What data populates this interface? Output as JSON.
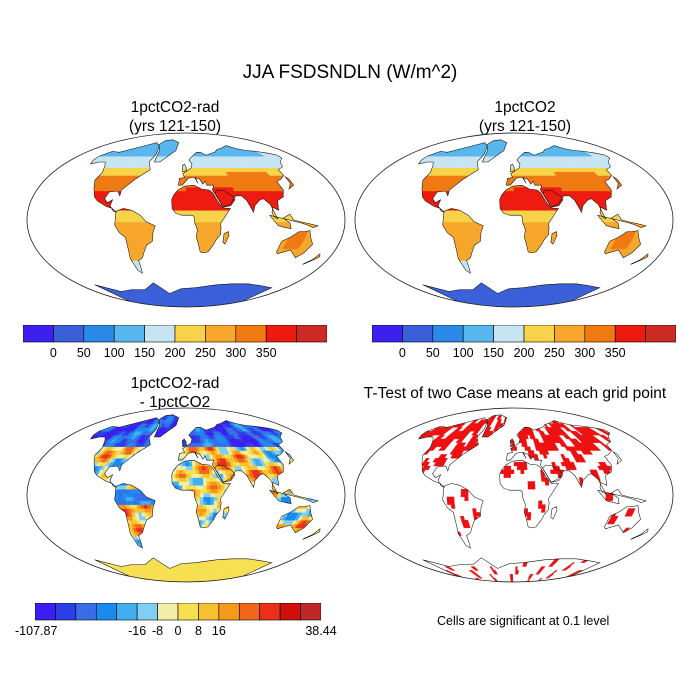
{
  "title": "JJA FSDSNDLN (W/m^2)",
  "panels": [
    {
      "id": "p1",
      "title_lines": [
        "1pctCO2-rad",
        "(yrs 121-150)"
      ],
      "kind": "absolute"
    },
    {
      "id": "p2",
      "title_lines": [
        "1pctCO2",
        "(yrs 121-150)"
      ],
      "kind": "absolute"
    },
    {
      "id": "p3",
      "title_lines": [
        "1pctCO2-rad",
        "- 1pctCO2"
      ],
      "kind": "difference"
    },
    {
      "id": "p4",
      "title_lines": [
        "T-Test of two Case means at each grid point"
      ],
      "kind": "ttest"
    }
  ],
  "colorbar_abs": {
    "colors": [
      "#3d1ff0",
      "#3a5fd9",
      "#2b8ae8",
      "#58b6ee",
      "#c6e4f2",
      "#f6d348",
      "#f6a72c",
      "#f07a12",
      "#ee1a10",
      "#cc2a22"
    ],
    "labels": [
      "0",
      "50",
      "100",
      "150",
      "200",
      "250",
      "300",
      "350"
    ]
  },
  "colorbar_diff": {
    "colors": [
      "#3a1ef2",
      "#2a3fe8",
      "#3a6ce8",
      "#1a8af0",
      "#40aef0",
      "#7fcff2",
      "#f2eeaa",
      "#f6e050",
      "#f6c030",
      "#f49a1a",
      "#f0661a",
      "#e8301a",
      "#d00e0e",
      "#c02828"
    ],
    "labels": [
      "-107.87",
      "-16",
      "-8",
      "0",
      "8",
      "16",
      "38.44"
    ]
  },
  "ttest_color": "#ee1010",
  "note": "Cells are significant at 0.1 level"
}
